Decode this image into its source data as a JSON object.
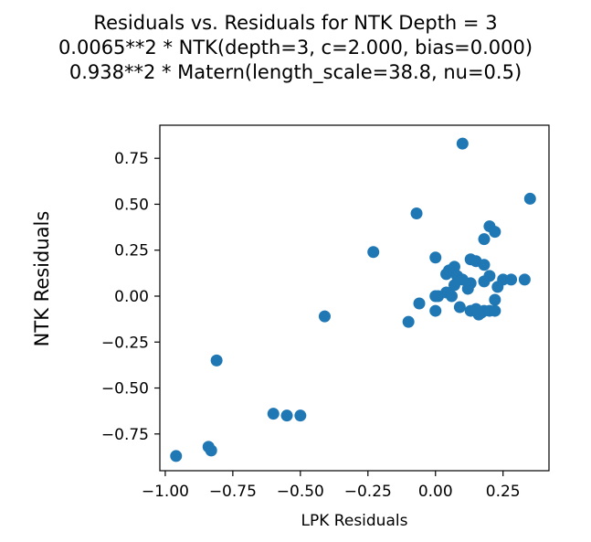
{
  "title_lines": [
    "Residuals vs. Residuals for NTK Depth = 3",
    "0.0065**2 * NTK(depth=3, c=2.000, bias=0.000)",
    "0.938**2 * Matern(length_scale=38.8, nu=0.5)"
  ],
  "chart_data": {
    "type": "scatter",
    "xlabel": "LPK Residuals",
    "ylabel": "NTK Residuals",
    "xlim": [
      -1.02,
      0.42
    ],
    "ylim": [
      -0.95,
      0.93
    ],
    "xticks": [
      -1.0,
      -0.75,
      -0.5,
      -0.25,
      0.0,
      0.25
    ],
    "xtick_labels": [
      "−1.00",
      "−0.75",
      "−0.50",
      "−0.25",
      "0.00",
      "0.25"
    ],
    "yticks": [
      -0.75,
      -0.5,
      -0.25,
      0.0,
      0.25,
      0.5,
      0.75
    ],
    "ytick_labels": [
      "−0.75",
      "−0.50",
      "−0.25",
      "0.00",
      "0.25",
      "0.50",
      "0.75"
    ],
    "grid": false,
    "marker_color": "#1f77b4",
    "points": [
      [
        0.1,
        0.83
      ],
      [
        0.35,
        0.53
      ],
      [
        -0.07,
        0.45
      ],
      [
        0.2,
        0.38
      ],
      [
        0.22,
        0.35
      ],
      [
        0.18,
        0.31
      ],
      [
        -0.23,
        0.24
      ],
      [
        0.0,
        0.21
      ],
      [
        0.13,
        0.2
      ],
      [
        0.15,
        0.19
      ],
      [
        0.18,
        0.17
      ],
      [
        0.07,
        0.16
      ],
      [
        0.05,
        0.14
      ],
      [
        0.04,
        0.12
      ],
      [
        0.08,
        0.11
      ],
      [
        0.2,
        0.11
      ],
      [
        0.25,
        0.09
      ],
      [
        0.28,
        0.09
      ],
      [
        0.33,
        0.09
      ],
      [
        0.1,
        0.09
      ],
      [
        0.18,
        0.08
      ],
      [
        0.13,
        0.07
      ],
      [
        0.07,
        0.06
      ],
      [
        0.23,
        0.05
      ],
      [
        0.12,
        0.04
      ],
      [
        0.04,
        0.02
      ],
      [
        0.06,
        0.0
      ],
      [
        0.0,
        0.0
      ],
      [
        0.01,
        0.0
      ],
      [
        0.22,
        -0.02
      ],
      [
        -0.06,
        -0.04
      ],
      [
        0.09,
        -0.06
      ],
      [
        0.0,
        -0.08
      ],
      [
        0.13,
        -0.08
      ],
      [
        0.15,
        -0.07
      ],
      [
        0.17,
        -0.09
      ],
      [
        0.18,
        -0.08
      ],
      [
        0.2,
        -0.08
      ],
      [
        0.22,
        -0.08
      ],
      [
        0.16,
        -0.1
      ],
      [
        -0.41,
        -0.11
      ],
      [
        -0.1,
        -0.14
      ],
      [
        -0.81,
        -0.35
      ],
      [
        -0.6,
        -0.64
      ],
      [
        -0.55,
        -0.65
      ],
      [
        -0.5,
        -0.65
      ],
      [
        -0.84,
        -0.82
      ],
      [
        -0.83,
        -0.84
      ],
      [
        -0.96,
        -0.87
      ]
    ]
  }
}
